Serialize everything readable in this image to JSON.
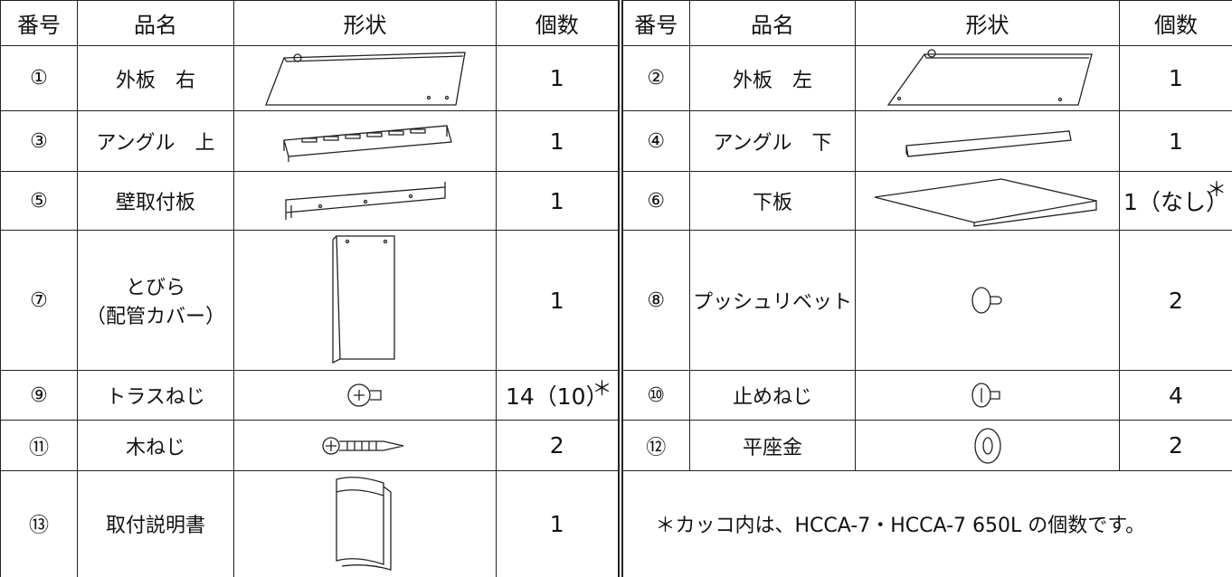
{
  "header": [
    "番号",
    "品名",
    "形状",
    "個数",
    "番号",
    "品名",
    "形状",
    "個数"
  ],
  "parts": [
    {
      "no": "①",
      "name": "外板　右",
      "qty": "1"
    },
    {
      "no": "②",
      "name": "外板　左",
      "qty": "1"
    },
    {
      "no": "③",
      "name": "アングル　上",
      "qty": "1"
    },
    {
      "no": "④",
      "name": "アングル　下",
      "qty": "1"
    },
    {
      "no": "⑤",
      "name": "壁取付板",
      "qty": "1"
    },
    {
      "no": "⑥",
      "name": "下板",
      "qty": "1（なし）",
      "mark": "＊"
    },
    {
      "no": "⑦",
      "name": "とびら",
      "name_sub": "（配管カバー）",
      "qty": "1"
    },
    {
      "no": "⑧",
      "name": "プッシュリベット",
      "qty": "2"
    },
    {
      "no": "⑨",
      "name": "トラスねじ",
      "qty": "14（10）",
      "mark": "＊"
    },
    {
      "no": "⑩",
      "name": "止めねじ",
      "qty": "4"
    },
    {
      "no": "⑪",
      "name": "木ねじ",
      "qty": "2"
    },
    {
      "no": "⑫",
      "name": "平座金",
      "qty": "2"
    },
    {
      "no": "⑬",
      "name": "取付説明書",
      "qty": "1"
    }
  ],
  "note": "＊カッコ内は、HCCA-7・HCCA-7 650L の個数です。"
}
